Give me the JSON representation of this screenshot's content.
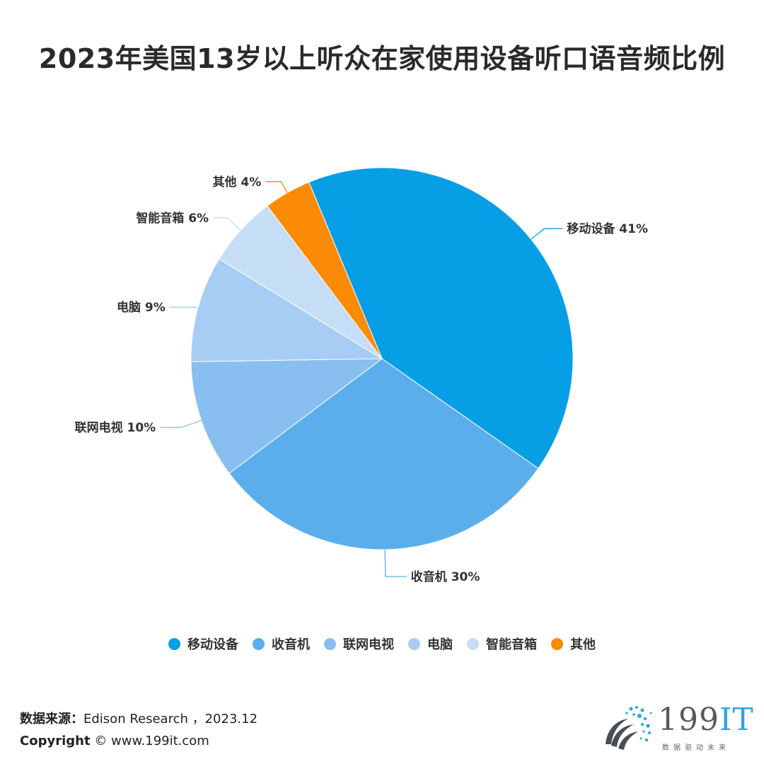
{
  "title": "2023年美国13岁以上听众在家使用设备听口语音频比例",
  "chart_data": {
    "type": "pie",
    "title": "2023年美国13岁以上听众在家使用设备听口语音频比例",
    "categories": [
      "移动设备",
      "收音机",
      "联网电视",
      "电脑",
      "智能音箱",
      "其他"
    ],
    "values": [
      41,
      30,
      10,
      9,
      6,
      4
    ],
    "data_labels": [
      "移动设备 41%",
      "收音机 30%",
      "联网电视 10%",
      "电脑 9%",
      "智能音箱 6%",
      "其他 4%"
    ],
    "colors": [
      "#069fe6",
      "#5baeec",
      "#88bff0",
      "#a8cdf4",
      "#c6ddf6",
      "#fb8a05"
    ],
    "legend_position": "bottom"
  },
  "source": {
    "label": "数据来源：",
    "text": "Edison Research ，2023.12"
  },
  "copyright": {
    "label": "Copyright",
    "text": "© www.199it.com"
  },
  "logo": {
    "main": "199",
    "accent": "IT",
    "sub": "数据驱动未来"
  }
}
